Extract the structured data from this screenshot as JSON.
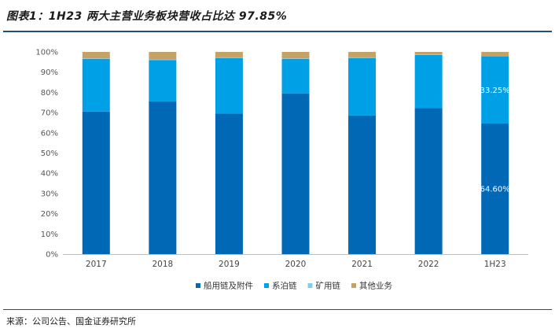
{
  "header": {
    "title": "图表1：1H23 两大主营业务板块营收占比达 97.85%"
  },
  "footer": {
    "source": "来源：公司公告、国金证券研究所"
  },
  "chart_data": {
    "type": "bar",
    "stacked": true,
    "categories": [
      "2017",
      "2018",
      "2019",
      "2020",
      "2021",
      "2022",
      "1H23"
    ],
    "series": [
      {
        "name": "船用链及附件",
        "color": "#0068b5",
        "values": [
          70.5,
          75.5,
          69.5,
          79.5,
          68.5,
          72.3,
          64.6
        ]
      },
      {
        "name": "系泊链",
        "color": "#00a0e6",
        "values": [
          26.0,
          20.5,
          27.5,
          17.0,
          28.5,
          26.2,
          33.25
        ]
      },
      {
        "name": "矿用链",
        "color": "#7fcdf0",
        "values": [
          0.3,
          0.3,
          0.3,
          0.3,
          0.3,
          0.2,
          0.15
        ]
      },
      {
        "name": "其他业务",
        "color": "#c4a265",
        "values": [
          3.2,
          3.7,
          2.7,
          3.2,
          2.7,
          1.3,
          2.0
        ]
      }
    ],
    "data_labels": [
      {
        "category": "1H23",
        "series": "系泊链",
        "text": "33.25%"
      },
      {
        "category": "1H23",
        "series": "船用链及附件",
        "text": "64.60%"
      }
    ],
    "yticks": [
      "0%",
      "10%",
      "20%",
      "30%",
      "40%",
      "50%",
      "60%",
      "70%",
      "80%",
      "90%",
      "100%"
    ],
    "ylim": [
      0,
      100
    ],
    "legend_position": "bottom"
  }
}
